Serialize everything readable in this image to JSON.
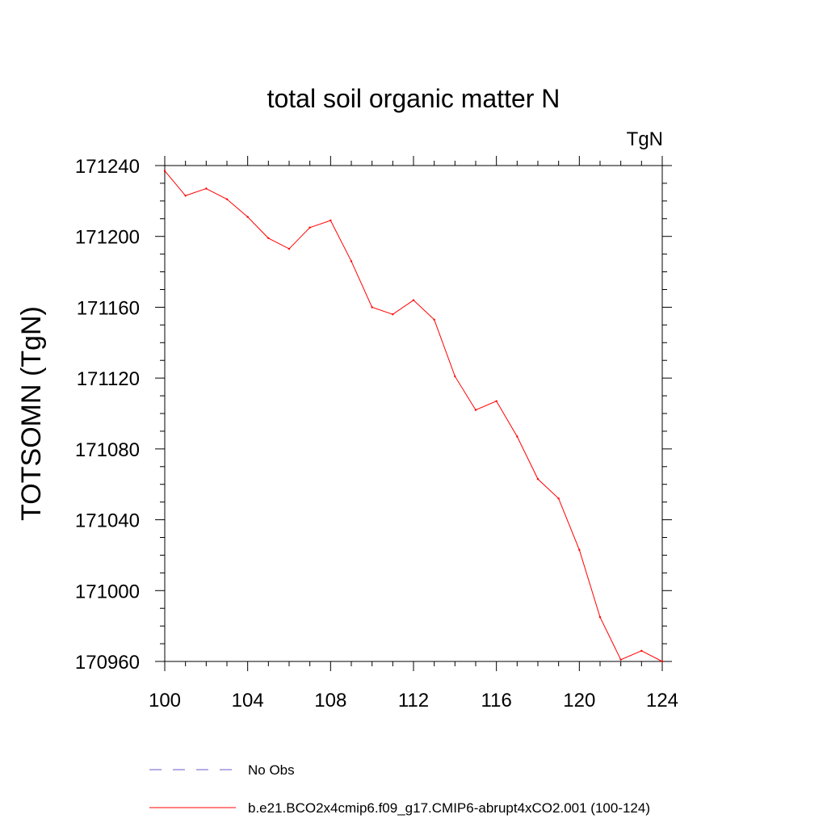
{
  "chart_data": {
    "type": "line",
    "title": "total soil organic matter N",
    "units_label": "TgN",
    "xlabel": "",
    "ylabel": "TOTSOMN  (TgN)",
    "xlim": [
      100,
      124
    ],
    "ylim": [
      170960,
      171240
    ],
    "x_ticks": [
      100,
      104,
      108,
      112,
      116,
      120,
      124
    ],
    "y_ticks": [
      170960,
      171000,
      171040,
      171080,
      171120,
      171160,
      171200,
      171240
    ],
    "x_tick_labels": [
      "100",
      "104",
      "108",
      "112",
      "116",
      "120",
      "124"
    ],
    "y_tick_labels": [
      "170960",
      "171000",
      "171040",
      "171080",
      "171120",
      "171160",
      "171200",
      "171240"
    ],
    "grid": false,
    "legend_position": "bottom",
    "series": [
      {
        "name": "b.e21.BCO2x4cmip6.f09_g17.CMIP6-abrupt4xCO2.001 (100-124)",
        "color": "#ff0000",
        "style": "solid",
        "x": [
          100,
          101,
          102,
          103,
          104,
          105,
          106,
          107,
          108,
          109,
          110,
          111,
          112,
          113,
          114,
          115,
          116,
          117,
          118,
          119,
          120,
          121,
          122,
          123,
          124
        ],
        "values": [
          171237,
          171223,
          171227,
          171221,
          171211,
          171199,
          171193,
          171205,
          171209,
          171186,
          171160,
          171156,
          171164,
          171153,
          171121,
          171102,
          171107,
          171087,
          171063,
          171052,
          171023,
          170985,
          170961,
          170966,
          170960
        ]
      }
    ],
    "legend": [
      {
        "label": "No Obs",
        "color": "#6a5acd",
        "style": "dashed"
      },
      {
        "label": "b.e21.BCO2x4cmip6.f09_g17.CMIP6-abrupt4xCO2.001 (100-124)",
        "color": "#ff0000",
        "style": "solid"
      }
    ]
  }
}
